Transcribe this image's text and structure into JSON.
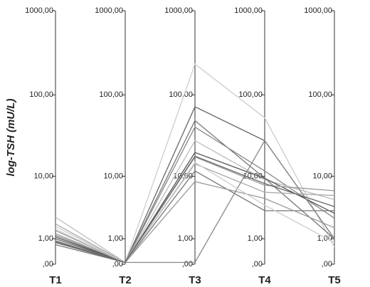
{
  "chart_data": {
    "type": "parallel",
    "y_label": "log-TSH (mU/L)",
    "scale": "log1p",
    "categories": [
      "T1",
      "T2",
      "T3",
      "T4",
      "T5"
    ],
    "ylim": [
      0,
      1000
    ],
    "yticks": [
      {
        "value": 0,
        "label": ",00"
      },
      {
        "value": 1,
        "label": "1,00"
      },
      {
        "value": 10,
        "label": "10,00"
      },
      {
        "value": 100,
        "label": "100,00"
      },
      {
        "value": 1000,
        "label": "1000,00"
      }
    ],
    "series": [
      {
        "color": "#cccccc",
        "values": [
          1.8,
          0.05,
          233,
          53,
          0.6
        ]
      },
      {
        "color": "#666666",
        "values": [
          1.0,
          0.05,
          72,
          28,
          1.0
        ]
      },
      {
        "color": "#777777",
        "values": [
          0.8,
          0.05,
          49,
          9.4,
          1.0
        ]
      },
      {
        "color": "#888888",
        "values": [
          1.2,
          0.05,
          41,
          11.7,
          2.5
        ]
      },
      {
        "color": "#bbbbbb",
        "values": [
          2.6,
          0.05,
          28,
          9,
          4.8
        ]
      },
      {
        "color": "#555555",
        "values": [
          1.1,
          0.05,
          20,
          9.4,
          3.0
        ]
      },
      {
        "color": "#999999",
        "values": [
          1.5,
          0.05,
          17.6,
          7.6,
          6.4
        ]
      },
      {
        "color": "#aaaaaa",
        "values": [
          2.0,
          0.05,
          14.4,
          6.1,
          5.5
        ]
      },
      {
        "color": "#777777",
        "values": [
          0.7,
          0.05,
          11.7,
          3.3,
          3.3
        ]
      },
      {
        "color": "#999999",
        "values": [
          1.3,
          0.05,
          8.5,
          5,
          1.7
        ]
      },
      {
        "color": "#888888",
        "values": [
          0.9,
          0.05,
          0.05,
          28,
          1.0
        ]
      },
      {
        "color": "#cccccc",
        "values": [
          1.6,
          0.05,
          15,
          4,
          0.8
        ]
      },
      {
        "color": "#666666",
        "values": [
          0.85,
          0.05,
          18,
          8,
          3.8
        ]
      }
    ]
  }
}
